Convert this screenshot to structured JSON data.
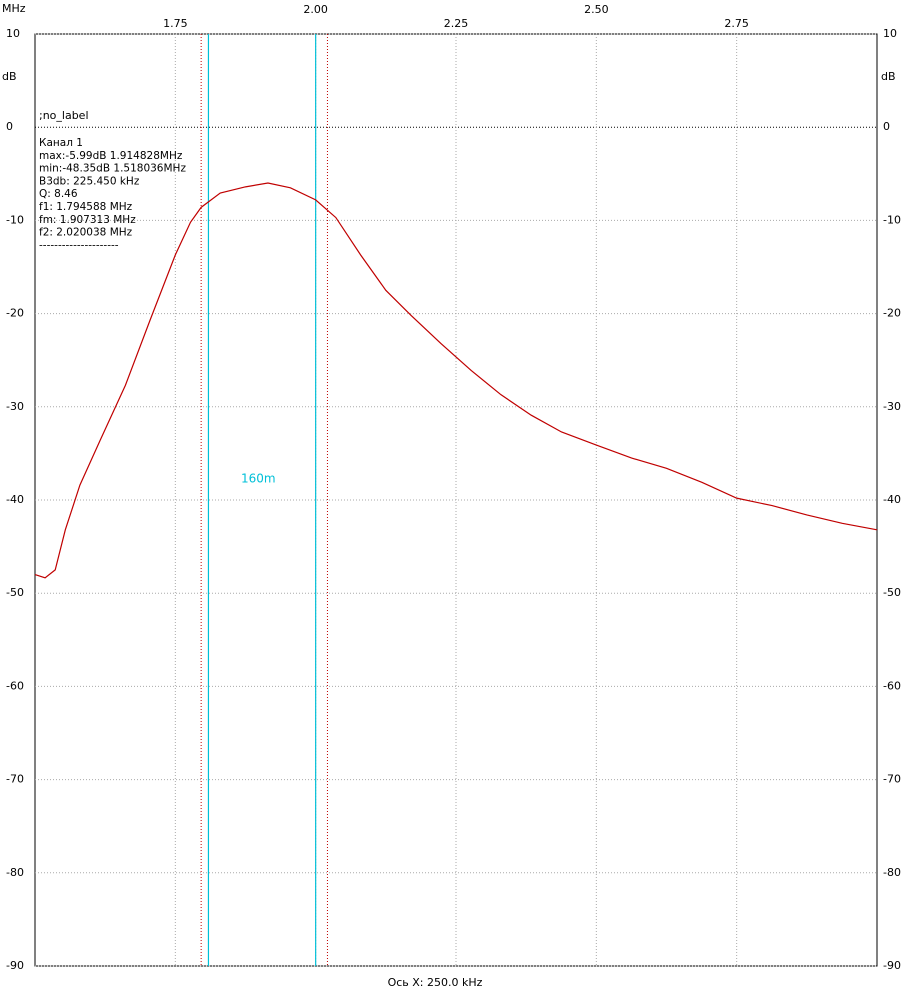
{
  "chart_data": {
    "type": "line",
    "x_unit": "MHz",
    "y_label": "dB",
    "x_label": "Ось X: 250.0 kHz",
    "xlim": [
      1.5,
      3.0
    ],
    "xticks": [
      1.75,
      {
        "value": 2,
        "label": "2.00"
      },
      2.25,
      {
        "value": 2.5,
        "label": "2.50"
      },
      2.75
    ],
    "ylim": [
      -90,
      10
    ],
    "yticks": [
      10,
      0,
      -10,
      -20,
      -30,
      -40,
      -50,
      -60,
      -70,
      -80,
      -90
    ],
    "grid": true,
    "series": [
      {
        "name": "Канал 1",
        "color": "#c00000",
        "x": [
          1.5,
          1.518,
          1.536,
          1.554,
          1.58,
          1.616,
          1.661,
          1.705,
          1.75,
          1.777,
          1.796,
          1.83,
          1.875,
          1.915,
          1.955,
          2.0,
          2.036,
          2.08,
          2.125,
          2.17,
          2.223,
          2.277,
          2.33,
          2.384,
          2.438,
          2.5,
          2.563,
          2.625,
          2.688,
          2.75,
          2.813,
          2.875,
          2.938,
          3.0
        ],
        "values": [
          -48.0,
          -48.35,
          -47.5,
          -43.2,
          -38.4,
          -33.6,
          -27.7,
          -20.7,
          -13.7,
          -10.2,
          -8.6,
          -7.06,
          -6.4,
          -5.99,
          -6.5,
          -7.8,
          -9.7,
          -13.7,
          -17.5,
          -20.2,
          -23.2,
          -26.1,
          -28.7,
          -30.9,
          -32.7,
          -34.1,
          -35.5,
          -36.6,
          -38.1,
          -39.8,
          -40.6,
          -41.6,
          -42.5,
          -43.2
        ]
      }
    ],
    "markers": [
      {
        "x": 1.809,
        "color": "#00c0d8",
        "style": "solid"
      },
      {
        "x": 2.0,
        "color": "#00c0d8",
        "style": "solid"
      },
      {
        "x": 1.796,
        "color": "#c00000",
        "style": "dotted"
      },
      {
        "x": 2.021,
        "color": "#c00000",
        "style": "dotted"
      }
    ],
    "band_label": "160m",
    "label_tag": ";no_label",
    "info": [
      "Канал 1",
      "max:-5.99dB 1.914828MHz",
      "min:-48.35dB 1.518036MHz",
      "B3db: 225.450 kHz",
      "Q: 8.46",
      "f1: 1.794588 MHz",
      "fm: 1.907313 MHz",
      "f2: 2.020038 MHz",
      "---------------------"
    ]
  }
}
